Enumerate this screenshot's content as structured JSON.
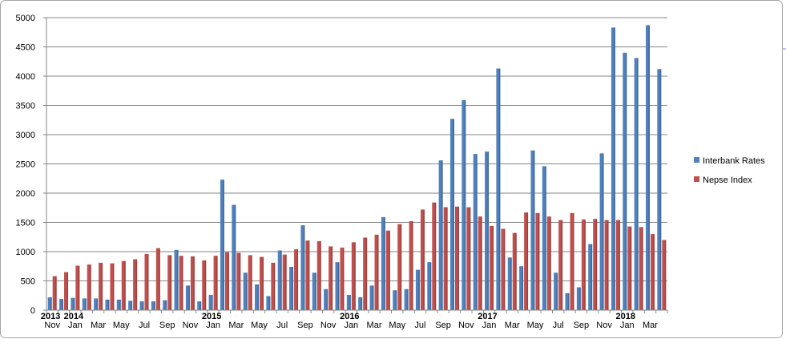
{
  "chart_data": {
    "type": "bar",
    "title": "",
    "xlabel": "",
    "ylabel": "",
    "ylim": [
      0,
      5000
    ],
    "yticks": [
      0,
      500,
      1000,
      1500,
      2000,
      2500,
      3000,
      3500,
      4000,
      4500,
      5000
    ],
    "grid": true,
    "legend_position": "right",
    "colors": {
      "Interbank Rates": "#4f81bd",
      "Nepse Index": "#c0504d"
    },
    "categories": [
      "Nov-2013",
      "Dec-2013",
      "Jan-2014",
      "Feb-2014",
      "Mar-2014",
      "Apr-2014",
      "May-2014",
      "Jun-2014",
      "Jul-2014",
      "Aug-2014",
      "Sep-2014",
      "Oct-2014",
      "Nov-2014",
      "Dec-2014",
      "Jan-2015",
      "Feb-2015",
      "Mar-2015",
      "Apr-2015",
      "May-2015",
      "Jun-2015",
      "Jul-2015",
      "Aug-2015",
      "Sep-2015",
      "Oct-2015",
      "Nov-2015",
      "Dec-2015",
      "Jan-2016",
      "Feb-2016",
      "Mar-2016",
      "Apr-2016",
      "May-2016",
      "Jun-2016",
      "Jul-2016",
      "Aug-2016",
      "Sep-2016",
      "Oct-2016",
      "Nov-2016",
      "Dec-2016",
      "Jan-2017",
      "Feb-2017",
      "Mar-2017",
      "Apr-2017",
      "May-2017",
      "Jun-2017",
      "Jul-2017",
      "Aug-2017",
      "Sep-2017",
      "Oct-2017",
      "Nov-2017",
      "Dec-2017",
      "Jan-2018",
      "Feb-2018",
      "Mar-2018",
      "Apr-2018"
    ],
    "series": [
      {
        "name": "Interbank Rates",
        "values": [
          220,
          190,
          210,
          200,
          200,
          180,
          180,
          160,
          150,
          150,
          170,
          1030,
          420,
          150,
          260,
          2230,
          1800,
          640,
          440,
          240,
          1020,
          740,
          1450,
          640,
          360,
          820,
          260,
          220,
          420,
          1590,
          340,
          360,
          690,
          820,
          2560,
          3270,
          3590,
          2670,
          2710,
          4130,
          900,
          750,
          2730,
          2460,
          640,
          290,
          390,
          1130,
          2680,
          4830,
          4400,
          4310,
          4870,
          4120
        ]
      },
      {
        "name": "Nepse Index",
        "values": [
          580,
          650,
          760,
          780,
          810,
          800,
          840,
          870,
          960,
          1060,
          940,
          930,
          920,
          850,
          930,
          990,
          980,
          940,
          910,
          810,
          950,
          1040,
          1190,
          1180,
          1090,
          1070,
          1160,
          1240,
          1290,
          1360,
          1470,
          1520,
          1720,
          1840,
          1760,
          1770,
          1760,
          1600,
          1440,
          1390,
          1320,
          1670,
          1660,
          1600,
          1540,
          1660,
          1550,
          1560,
          1540,
          1540,
          1430,
          1420,
          1300,
          1200
        ]
      }
    ],
    "x_month_labels": [
      "Nov",
      "Jan",
      "Mar",
      "May",
      "Jul",
      "Sep",
      "Nov",
      "Jan",
      "Mar",
      "May",
      "Jul",
      "Sep",
      "Nov",
      "Jan",
      "Mar",
      "May",
      "Jul",
      "Sep",
      "Nov",
      "Jan",
      "Mar",
      "May",
      "Jul",
      "Sep",
      "Nov",
      "Jan",
      "Mar"
    ],
    "x_year_labels": [
      "2013",
      "2014",
      "2015",
      "2016",
      "2017",
      "2018"
    ]
  }
}
